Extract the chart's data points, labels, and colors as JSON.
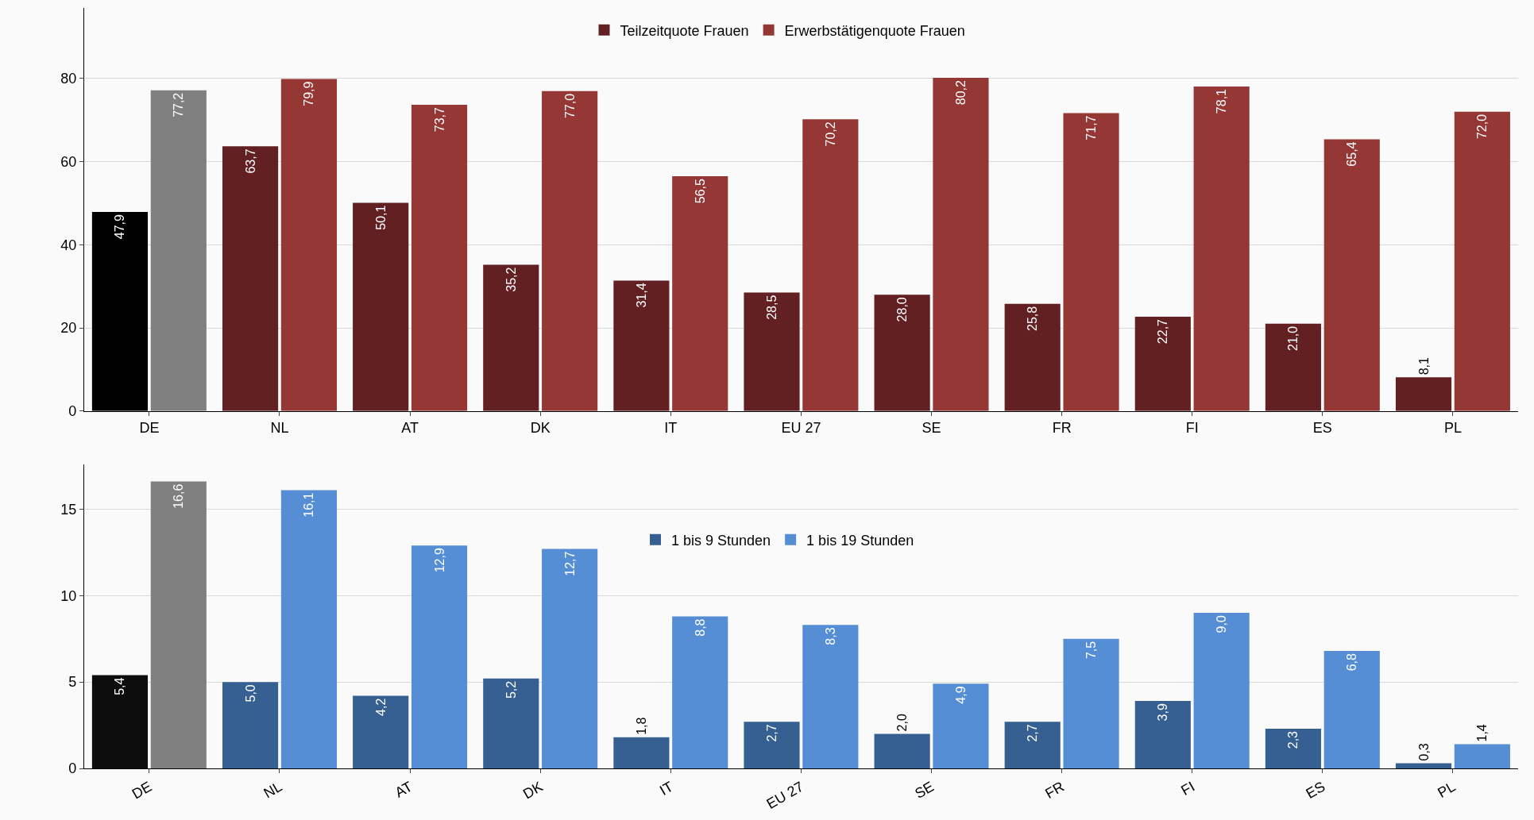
{
  "chart_data": [
    {
      "type": "bar",
      "categories": [
        "DE",
        "NL",
        "AT",
        "DK",
        "IT",
        "EU 27",
        "SE",
        "FR",
        "FI",
        "ES",
        "PL"
      ],
      "ylim": [
        0,
        97
      ],
      "yticks": [
        0,
        20,
        40,
        60,
        80
      ],
      "grid": "y",
      "legend": "top",
      "series": [
        {
          "name": "Teilzeitquote Frauen",
          "color": "#632023",
          "colors": [
            "#000000",
            "#632023",
            "#632023",
            "#632023",
            "#632023",
            "#632023",
            "#632023",
            "#632023",
            "#632023",
            "#632023",
            "#632023"
          ],
          "values": [
            47.9,
            63.7,
            50.1,
            35.2,
            31.4,
            28.5,
            28.0,
            25.8,
            22.7,
            21.0,
            8.1
          ],
          "value_labels": [
            "47,9",
            "63,7",
            "50,1",
            "35,2",
            "31,4",
            "28,5",
            "28,0",
            "25,8",
            "22,7",
            "21,0",
            "8,1"
          ]
        },
        {
          "name": "Erwerbstätigenquote Frauen",
          "color": "#953735",
          "colors": [
            "#808080",
            "#953735",
            "#953735",
            "#953735",
            "#953735",
            "#953735",
            "#953735",
            "#953735",
            "#953735",
            "#953735",
            "#953735"
          ],
          "values": [
            77.2,
            79.9,
            73.7,
            77.0,
            56.5,
            70.2,
            80.2,
            71.7,
            78.1,
            65.4,
            72.0
          ],
          "value_labels": [
            "77,2",
            "79,9",
            "73,7",
            "77,0",
            "56,5",
            "70,2",
            "80,2",
            "71,7",
            "78,1",
            "65,4",
            "72,0"
          ]
        }
      ]
    },
    {
      "type": "bar",
      "categories": [
        "DE",
        "NL",
        "AT",
        "DK",
        "IT",
        "EU 27",
        "SE",
        "FR",
        "FI",
        "ES",
        "PL"
      ],
      "ylim": [
        0,
        17.6
      ],
      "yticks": [
        0,
        5,
        10,
        15
      ],
      "grid": "y",
      "legend": "top",
      "series": [
        {
          "name": "1 bis 9 Stunden",
          "color": "#366092",
          "colors": [
            "#0d0d0d",
            "#366092",
            "#366092",
            "#366092",
            "#366092",
            "#366092",
            "#366092",
            "#366092",
            "#366092",
            "#366092",
            "#366092"
          ],
          "values": [
            5.4,
            5.0,
            4.2,
            5.2,
            1.8,
            2.7,
            2.0,
            2.7,
            3.9,
            2.3,
            0.3
          ],
          "value_labels": [
            "5,4",
            "5,0",
            "4,2",
            "5,2",
            "1,8",
            "2,7",
            "2,0",
            "2,7",
            "3,9",
            "2,3",
            "0,3"
          ]
        },
        {
          "name": "1 bis 19 Stunden",
          "color": "#558ed5",
          "colors": [
            "#808080",
            "#558ed5",
            "#558ed5",
            "#558ed5",
            "#558ed5",
            "#558ed5",
            "#558ed5",
            "#558ed5",
            "#558ed5",
            "#558ed5",
            "#558ed5"
          ],
          "values": [
            16.6,
            16.1,
            12.9,
            12.7,
            8.8,
            8.3,
            4.9,
            7.5,
            9.0,
            6.8,
            1.4
          ],
          "value_labels": [
            "16,6",
            "16,1",
            "12,9",
            "12,7",
            "8,8",
            "8,3",
            "4,9",
            "7,5",
            "9,0",
            "6,8",
            "1,4"
          ]
        }
      ]
    }
  ]
}
